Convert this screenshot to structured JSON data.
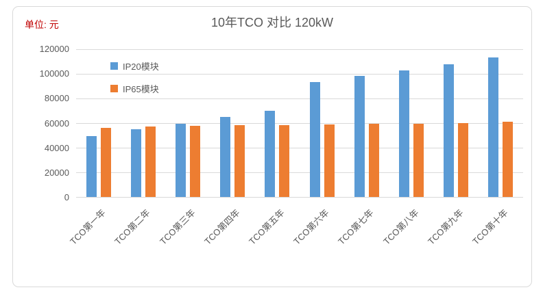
{
  "frame": {
    "unit_label": "单位: 元"
  },
  "chart_data": {
    "type": "bar",
    "title": "10年TCO 对比 120kW",
    "categories": [
      "TCO第一年",
      "TCO第二年",
      "TCO第三年",
      "TCO第四年",
      "TCO第五年",
      "TCO第六年",
      "TCO第七年",
      "TCO第八年",
      "TCO第九年",
      "TCO第十年"
    ],
    "series": [
      {
        "name": "IP20模块",
        "color": "#5B9BD5",
        "values": [
          49500,
          54500,
          59000,
          64500,
          69500,
          93000,
          98000,
          102500,
          107500,
          113000
        ]
      },
      {
        "name": "IP65模块",
        "color": "#ED7D31",
        "values": [
          56000,
          56800,
          57400,
          57900,
          58300,
          58700,
          59100,
          59400,
          60000,
          61000
        ]
      }
    ],
    "xlabel": "",
    "ylabel": "",
    "ylim": [
      0,
      120000
    ],
    "yticks": [
      0,
      20000,
      40000,
      60000,
      80000,
      100000,
      120000
    ],
    "grid": true,
    "legend_position": "inside-top-left",
    "colors": {
      "grid": "#d9d9d9",
      "axis_line": "#d9d9d9",
      "axis_text": "#595959",
      "title_text": "#595959",
      "unit_text": "#c00000",
      "frame_border": "#d9d9d9",
      "background": "#ffffff"
    }
  }
}
